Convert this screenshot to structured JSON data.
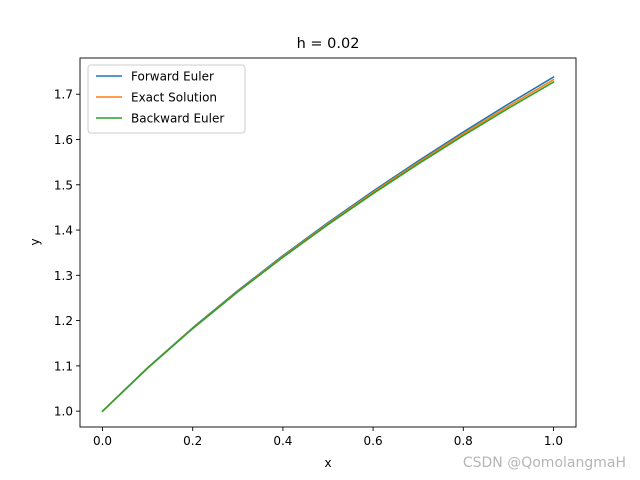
{
  "chart_data": {
    "type": "line",
    "title": "h = 0.02",
    "xlabel": "x",
    "ylabel": "y",
    "xlim": [
      -0.05,
      1.05
    ],
    "ylim": [
      0.965,
      1.78
    ],
    "xticks": [
      0.0,
      0.2,
      0.4,
      0.6,
      0.8,
      1.0
    ],
    "xtick_labels": [
      "0.0",
      "0.2",
      "0.4",
      "0.6",
      "0.8",
      "1.0"
    ],
    "yticks": [
      1.0,
      1.1,
      1.2,
      1.3,
      1.4,
      1.5,
      1.6,
      1.7
    ],
    "ytick_labels": [
      "1.0",
      "1.1",
      "1.2",
      "1.3",
      "1.4",
      "1.5",
      "1.6",
      "1.7"
    ],
    "grid": false,
    "legend_position": "top-left",
    "x": [
      0.0,
      0.1,
      0.2,
      0.3,
      0.4,
      0.5,
      0.6,
      0.7,
      0.8,
      0.9,
      1.0
    ],
    "series": [
      {
        "name": "Forward Euler",
        "color": "#1f77b4",
        "values": [
          1.0,
          1.0959,
          1.1841,
          1.2662,
          1.3434,
          1.4164,
          1.486,
          1.5525,
          1.6165,
          1.6782,
          1.7379
        ]
      },
      {
        "name": "Exact Solution",
        "color": "#ff7f0e",
        "values": [
          1.0,
          1.0954,
          1.1832,
          1.2649,
          1.3416,
          1.4142,
          1.4832,
          1.5492,
          1.6125,
          1.6733,
          1.7321
        ]
      },
      {
        "name": "Backward Euler",
        "color": "#2ca02c",
        "values": [
          1.0,
          1.095,
          1.1824,
          1.2637,
          1.3399,
          1.4121,
          1.4806,
          1.5461,
          1.6087,
          1.6688,
          1.7267
        ]
      }
    ]
  },
  "watermark": "CSDN @QomolangmaH"
}
